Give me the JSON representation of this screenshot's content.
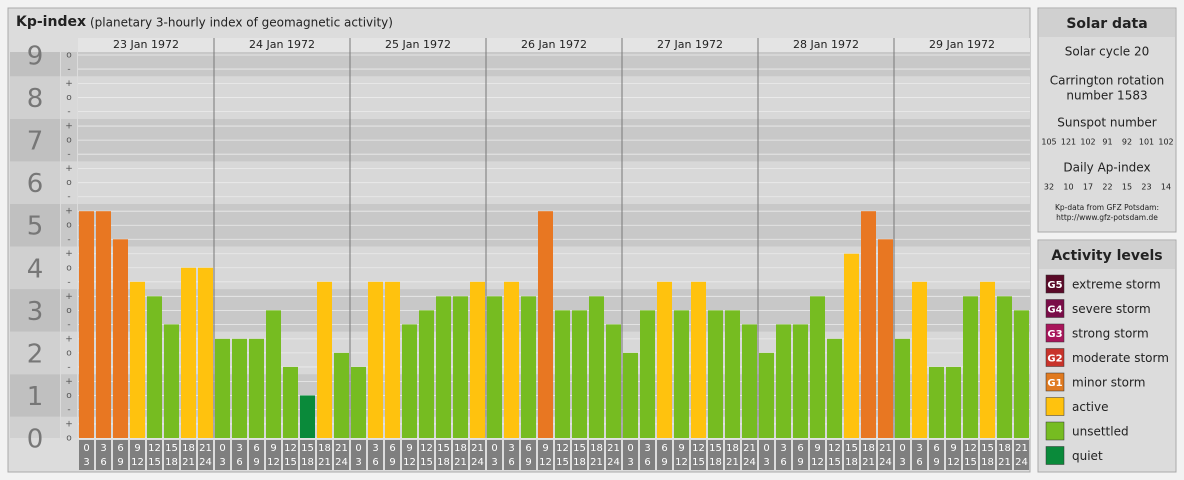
{
  "chart_data": {
    "type": "bar",
    "title": "Kp-index",
    "subtitle": "(planetary 3-hourly index of geomagnetic activity)",
    "ylim": [
      0,
      9.4
    ],
    "major_ticks": [
      0,
      1,
      2,
      3,
      4,
      5,
      6,
      7,
      8,
      9
    ],
    "yticks": [
      {
        "value": 0,
        "label": "o"
      },
      {
        "value": 0.33,
        "label": "+"
      },
      {
        "value": 0.67,
        "label": "-"
      },
      {
        "value": 1,
        "label": "o"
      },
      {
        "value": 1.33,
        "label": "+"
      },
      {
        "value": 1.67,
        "label": "-"
      },
      {
        "value": 2,
        "label": "o"
      },
      {
        "value": 2.33,
        "label": "+"
      },
      {
        "value": 2.67,
        "label": "-"
      },
      {
        "value": 3,
        "label": "o"
      },
      {
        "value": 3.33,
        "label": "+"
      },
      {
        "value": 3.67,
        "label": "-"
      },
      {
        "value": 4,
        "label": "o"
      },
      {
        "value": 4.33,
        "label": "+"
      },
      {
        "value": 4.67,
        "label": "-"
      },
      {
        "value": 5,
        "label": "o"
      },
      {
        "value": 5.33,
        "label": "+"
      },
      {
        "value": 5.67,
        "label": "-"
      },
      {
        "value": 6,
        "label": "o"
      },
      {
        "value": 6.33,
        "label": "+"
      },
      {
        "value": 6.67,
        "label": "-"
      },
      {
        "value": 7,
        "label": "o"
      },
      {
        "value": 7.33,
        "label": "+"
      },
      {
        "value": 7.67,
        "label": "-"
      },
      {
        "value": 8,
        "label": "o"
      },
      {
        "value": 8.33,
        "label": "+"
      },
      {
        "value": 8.67,
        "label": "-"
      },
      {
        "value": 9,
        "label": "o"
      }
    ],
    "hours": [
      [
        0,
        3
      ],
      [
        3,
        6
      ],
      [
        6,
        9
      ],
      [
        9,
        12
      ],
      [
        12,
        15
      ],
      [
        15,
        18
      ],
      [
        18,
        21
      ],
      [
        21,
        24
      ]
    ],
    "days": [
      {
        "date": "23 Jan 1972",
        "values": [
          5.33,
          5.33,
          4.67,
          3.67,
          3.33,
          2.67,
          4,
          4
        ],
        "colors": [
          "#e87722",
          "#e87722",
          "#e87722",
          "#ffc20e",
          "#76bc21",
          "#76bc21",
          "#ffc20e",
          "#ffc20e"
        ]
      },
      {
        "date": "24 Jan 1972",
        "values": [
          2.33,
          2.33,
          2.33,
          3,
          1.67,
          1,
          3.67,
          2
        ],
        "colors": [
          "#76bc21",
          "#76bc21",
          "#76bc21",
          "#76bc21",
          "#76bc21",
          "#0a8a3a",
          "#ffc20e",
          "#76bc21"
        ]
      },
      {
        "date": "25 Jan 1972",
        "values": [
          1.67,
          3.67,
          3.67,
          2.67,
          3,
          3.33,
          3.33,
          3.67
        ],
        "colors": [
          "#76bc21",
          "#ffc20e",
          "#ffc20e",
          "#76bc21",
          "#76bc21",
          "#76bc21",
          "#76bc21",
          "#ffc20e"
        ]
      },
      {
        "date": "26 Jan 1972",
        "values": [
          3.33,
          3.67,
          3.33,
          5.33,
          3,
          3,
          3.33,
          2.67
        ],
        "colors": [
          "#76bc21",
          "#ffc20e",
          "#76bc21",
          "#e87722",
          "#76bc21",
          "#76bc21",
          "#76bc21",
          "#76bc21"
        ]
      },
      {
        "date": "27 Jan 1972",
        "values": [
          2,
          3,
          3.67,
          3,
          3.67,
          3,
          3,
          2.67
        ],
        "colors": [
          "#76bc21",
          "#76bc21",
          "#ffc20e",
          "#76bc21",
          "#ffc20e",
          "#76bc21",
          "#76bc21",
          "#76bc21"
        ]
      },
      {
        "date": "28 Jan 1972",
        "values": [
          2,
          2.67,
          2.67,
          3.33,
          2.33,
          4.33,
          5.33,
          4.67
        ],
        "colors": [
          "#76bc21",
          "#76bc21",
          "#76bc21",
          "#76bc21",
          "#76bc21",
          "#ffc20e",
          "#e87722",
          "#e87722"
        ]
      },
      {
        "date": "29 Jan 1972",
        "values": [
          2.33,
          3.67,
          1.67,
          1.67,
          3.33,
          3.67,
          3.33,
          3
        ],
        "colors": [
          "#76bc21",
          "#ffc20e",
          "#76bc21",
          "#76bc21",
          "#76bc21",
          "#ffc20e",
          "#76bc21",
          "#76bc21"
        ]
      }
    ]
  },
  "solar_data": {
    "title": "Solar data",
    "cycle": "Solar cycle 20",
    "carrington": [
      "Carrington rotation",
      "number 1583"
    ],
    "sunspot_label": "Sunspot number",
    "sunspot": [
      105,
      121,
      102,
      91,
      92,
      101,
      102
    ],
    "ap_label": "Daily Ap-index",
    "ap": [
      32,
      10,
      17,
      22,
      15,
      23,
      14
    ],
    "source": [
      "Kp-data from GFZ Potsdam:",
      "http://www.gfz-potsdam.de"
    ]
  },
  "activity_levels": {
    "title": "Activity levels",
    "items": [
      {
        "badge": "G5",
        "label": "extreme storm",
        "color": "#5a0a28"
      },
      {
        "badge": "G4",
        "label": "severe storm",
        "color": "#7a0c48"
      },
      {
        "badge": "G3",
        "label": "strong storm",
        "color": "#a8155a"
      },
      {
        "badge": "G2",
        "label": "moderate storm",
        "color": "#c8332a"
      },
      {
        "badge": "G1",
        "label": "minor storm",
        "color": "#e07a20"
      },
      {
        "badge": null,
        "label": "active",
        "color": "#ffc20e"
      },
      {
        "badge": null,
        "label": "unsettled",
        "color": "#76bc21"
      },
      {
        "badge": null,
        "label": "quiet",
        "color": "#0a8a3a"
      }
    ]
  }
}
